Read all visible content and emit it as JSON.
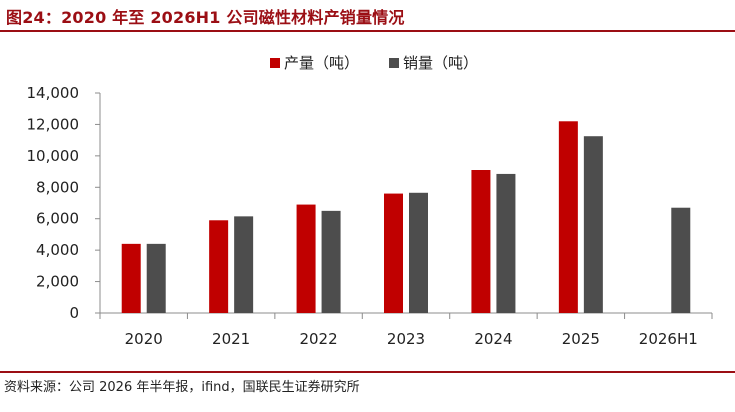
{
  "figure": {
    "title": "图24：2020 年至 2026H1 公司磁性材料产销量情况",
    "source": "资料来源：公司 2026 年半年报，ifind，国联民生证券研究所"
  },
  "colors": {
    "brand_red": "#9b0e14",
    "production": "#c00000",
    "sales": "#4d4d4d"
  },
  "chart_data": {
    "type": "bar",
    "categories": [
      "2020",
      "2021",
      "2022",
      "2023",
      "2024",
      "2025",
      "2026H1"
    ],
    "series": [
      {
        "name": "产量（吨）",
        "values": [
          4400,
          5900,
          6900,
          7600,
          9100,
          12200,
          null
        ]
      },
      {
        "name": "销量（吨）",
        "values": [
          4400,
          6150,
          6500,
          7650,
          8850,
          11250,
          6700
        ]
      }
    ],
    "ylim": [
      0,
      14000
    ],
    "yticks": [
      "0",
      "2,000",
      "4,000",
      "6,000",
      "8,000",
      "10,000",
      "12,000",
      "14,000"
    ],
    "grid": false,
    "legend_position": "top-center",
    "xlabel": "",
    "ylabel": ""
  }
}
